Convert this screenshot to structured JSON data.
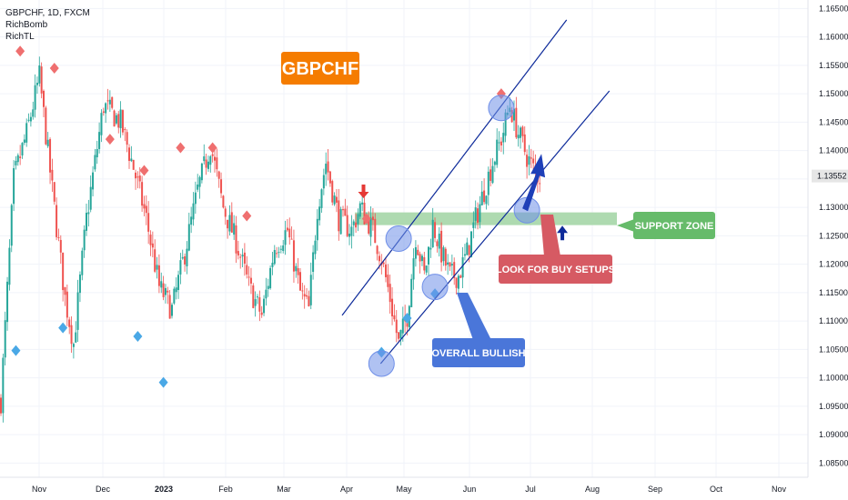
{
  "header": {
    "symbol_line": "GBPCHF, 1D, FXCM",
    "indicators": [
      "RichBomb",
      "RichTL"
    ]
  },
  "annotations": {
    "title_box": "GBPCHF",
    "support_zone": "SUPPORT ZONE",
    "look_for_buy": "LOOK FOR BUY SETUPS",
    "overall_bullish": "OVERALL BULLISH"
  },
  "colors": {
    "bull": "#26a69a",
    "bear": "#ef5350",
    "title_box": "#f57c00",
    "zone_fill": "#a5d6a7",
    "zone_label": "#66bb6a",
    "buy_label": "#d65a63",
    "bullish_label": "#4a76d9",
    "channel": "#0d2a9a",
    "circle": "#6f8fe8",
    "arrow_up": "#1e3fb8",
    "marker_sell": "#ef6f6f",
    "marker_buy": "#4aa8e6",
    "last_price_bg": "#e6e6e6"
  },
  "chart_data": {
    "type": "candlestick",
    "title": "GBPCHF, 1D, FXCM",
    "price_axis": {
      "ticks": [
        "1.16500",
        "1.16000",
        "1.15500",
        "1.15000",
        "1.14500",
        "1.14000",
        "1.13500",
        "1.13000",
        "1.12500",
        "1.12000",
        "1.11500",
        "1.11000",
        "1.10500",
        "1.10000",
        "1.09500",
        "1.09000",
        "1.08500"
      ],
      "range": [
        1.0825,
        1.1665
      ],
      "last_price": "1.13552"
    },
    "time_axis": {
      "labels": [
        {
          "text": "Nov",
          "bold": false
        },
        {
          "text": "Dec",
          "bold": false
        },
        {
          "text": "2023",
          "bold": true
        },
        {
          "text": "Feb",
          "bold": false
        },
        {
          "text": "Mar",
          "bold": false
        },
        {
          "text": "Apr",
          "bold": false
        },
        {
          "text": "May",
          "bold": false
        },
        {
          "text": "Jun",
          "bold": false
        },
        {
          "text": "Jul",
          "bold": false
        },
        {
          "text": "Aug",
          "bold": false
        },
        {
          "text": "Sep",
          "bold": false
        },
        {
          "text": "Oct",
          "bold": false
        },
        {
          "text": "Nov",
          "bold": false
        }
      ]
    },
    "waypoints": [
      [
        0,
        1.096
      ],
      [
        6,
        1.135
      ],
      [
        12,
        1.143
      ],
      [
        18,
        1.153
      ],
      [
        24,
        1.133
      ],
      [
        30,
        1.114
      ],
      [
        34,
        1.106
      ],
      [
        40,
        1.128
      ],
      [
        48,
        1.148
      ],
      [
        56,
        1.145
      ],
      [
        62,
        1.137
      ],
      [
        68,
        1.128
      ],
      [
        74,
        1.116
      ],
      [
        80,
        1.112
      ],
      [
        86,
        1.122
      ],
      [
        92,
        1.133
      ],
      [
        98,
        1.141
      ],
      [
        104,
        1.13
      ],
      [
        110,
        1.124
      ],
      [
        116,
        1.116
      ],
      [
        122,
        1.111
      ],
      [
        128,
        1.123
      ],
      [
        134,
        1.126
      ],
      [
        140,
        1.115
      ],
      [
        144,
        1.112
      ],
      [
        148,
        1.13
      ],
      [
        152,
        1.138
      ],
      [
        158,
        1.128
      ],
      [
        164,
        1.126
      ],
      [
        168,
        1.13
      ],
      [
        174,
        1.126
      ],
      [
        178,
        1.121
      ],
      [
        182,
        1.114
      ],
      [
        186,
        1.106
      ],
      [
        190,
        1.111
      ],
      [
        194,
        1.125
      ],
      [
        198,
        1.118
      ],
      [
        202,
        1.127
      ],
      [
        206,
        1.122
      ],
      [
        210,
        1.118
      ],
      [
        214,
        1.118
      ],
      [
        218,
        1.122
      ],
      [
        222,
        1.128
      ],
      [
        226,
        1.133
      ],
      [
        230,
        1.138
      ],
      [
        234,
        1.142
      ],
      [
        238,
        1.148
      ],
      [
        242,
        1.143
      ],
      [
        246,
        1.139
      ],
      [
        250,
        1.136
      ],
      [
        252,
        1.1355
      ]
    ],
    "sell_signals": [
      [
        9,
        1.1575
      ],
      [
        25,
        1.1545
      ],
      [
        51,
        1.142
      ],
      [
        67,
        1.1365
      ],
      [
        84,
        1.1405
      ],
      [
        99,
        1.1405
      ],
      [
        115,
        1.1285
      ],
      [
        171,
        1.128
      ],
      [
        234,
        1.15
      ]
    ],
    "buy_signals": [
      [
        7,
        1.1048
      ],
      [
        29,
        1.1088
      ],
      [
        64,
        1.1073
      ],
      [
        76,
        1.0992
      ],
      [
        178,
        1.1045
      ],
      [
        190,
        1.1105
      ],
      [
        203,
        1.1148
      ]
    ],
    "channel_lines": [
      {
        "name": "upper",
        "from": [
          160,
          1.111
        ],
        "to": [
          265,
          1.163
        ]
      },
      {
        "name": "lower",
        "from": [
          178,
          1.1025
        ],
        "to": [
          285,
          1.1505
        ]
      }
    ],
    "support_zone": [
      1.1265,
      1.128
    ],
    "highlight_points": [
      [
        178,
        1.1025
      ],
      [
        186,
        1.1245
      ],
      [
        203,
        1.116
      ],
      [
        234,
        1.1475
      ],
      [
        246,
        1.1295
      ]
    ],
    "signal_arrows": [
      {
        "direction": "down",
        "at": [
          170,
          1.1305
        ]
      },
      {
        "direction": "up",
        "at": [
          263,
          1.1255
        ]
      }
    ]
  }
}
